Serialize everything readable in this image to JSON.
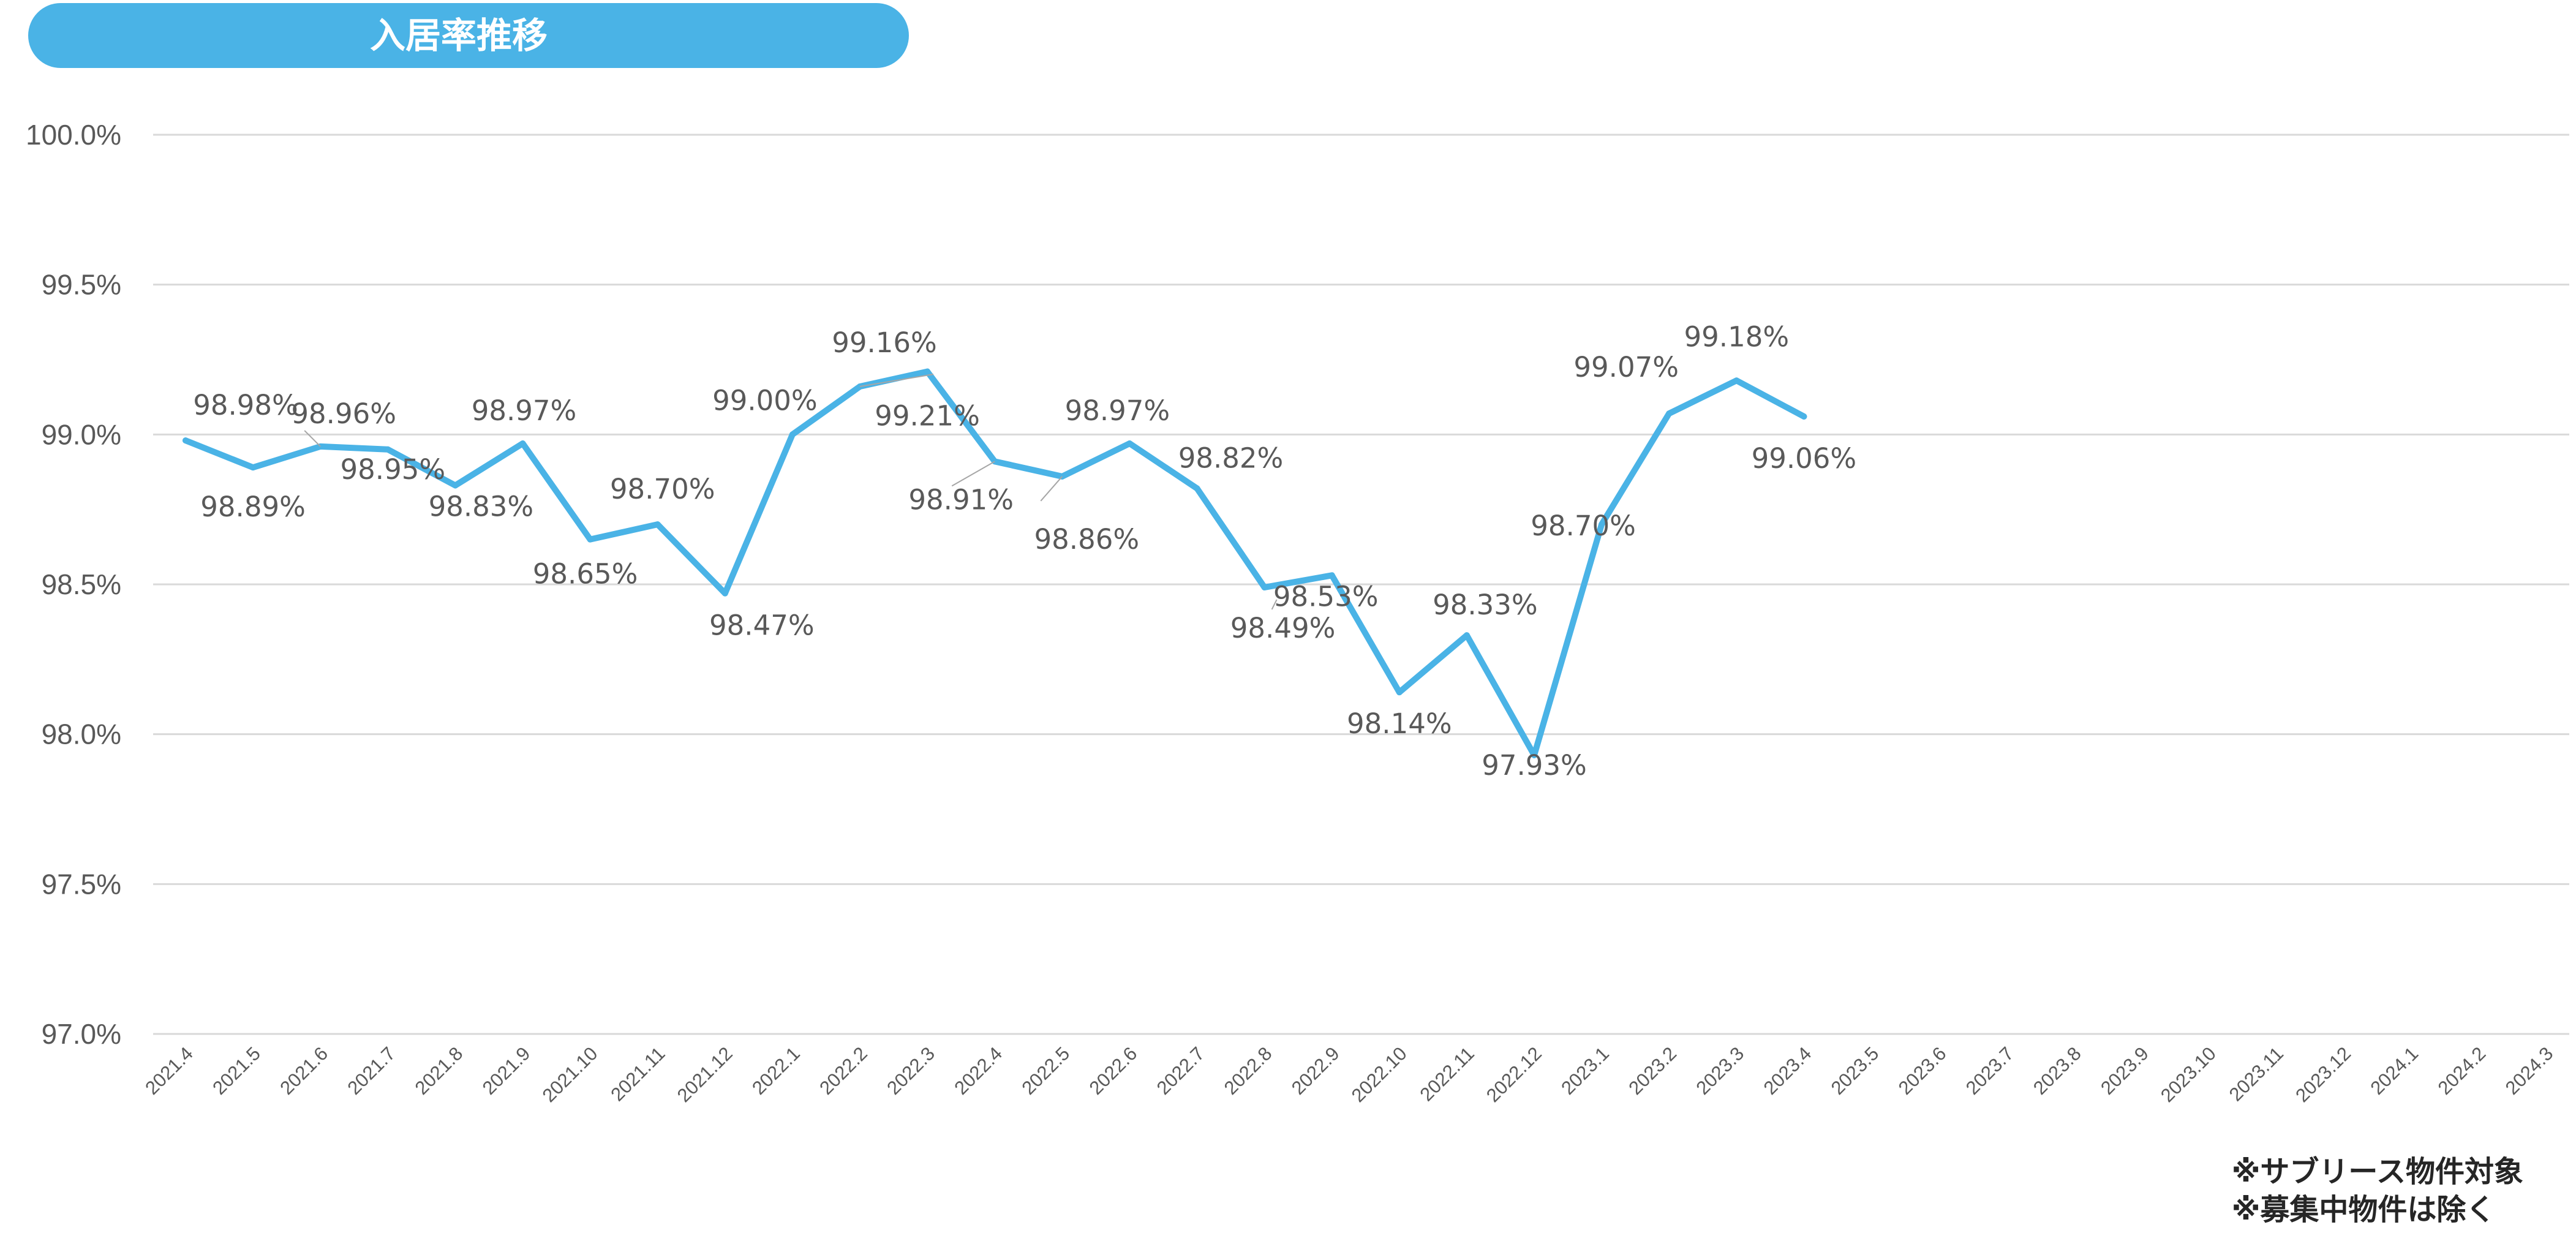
{
  "header": {
    "title": "入居率推移"
  },
  "notes": [
    "※サブリース物件対象",
    "※募集中物件は除く"
  ],
  "colors": {
    "line": "#4ab3e6",
    "grid": "#d9d9d9",
    "text": "#595959",
    "title_bg": "#4ab3e6"
  },
  "chart_data": {
    "type": "line",
    "title": "入居率推移",
    "categories": [
      "2021.4",
      "2021.5",
      "2021.6",
      "2021.7",
      "2021.8",
      "2021.9",
      "2021.10",
      "2021.11",
      "2021.12",
      "2022.1",
      "2022.2",
      "2022.3",
      "2022.4",
      "2022.5",
      "2022.6",
      "2022.7",
      "2022.8",
      "2022.9",
      "2022.10",
      "2022.11",
      "2022.12",
      "2023.1",
      "2023.2",
      "2023.3",
      "2023.4",
      "2023.5",
      "2023.6",
      "2023.7",
      "2023.8",
      "2023.9",
      "2023.10",
      "2023.11",
      "2023.12",
      "2024.1",
      "2024.2",
      "2024.3"
    ],
    "series": [
      {
        "values": [
          98.98,
          98.89,
          98.96,
          98.95,
          98.83,
          98.97,
          98.65,
          98.7,
          98.47,
          99.0,
          99.16,
          99.21,
          98.91,
          98.86,
          98.97,
          98.82,
          98.49,
          98.53,
          98.14,
          98.33,
          97.93,
          98.7,
          99.07,
          99.18,
          99.06,
          null,
          null,
          null,
          null,
          null,
          null,
          null,
          null,
          null,
          null,
          null
        ]
      }
    ],
    "data_labels": [
      "98.98%",
      "98.89%",
      "98.96%",
      "98.95%",
      "98.83%",
      "98.97%",
      "98.65%",
      "98.70%",
      "98.47%",
      "99.00%",
      "99.16%",
      "99.21%",
      "98.91%",
      "98.86%",
      "98.97%",
      "98.82%",
      "98.49%",
      "98.53%",
      "98.14%",
      "98.33%",
      "97.93%",
      "98.70%",
      "99.07%",
      "99.18%",
      "99.06%"
    ],
    "y_ticks": [
      "97.0%",
      "97.5%",
      "98.0%",
      "98.5%",
      "99.0%",
      "99.5%",
      "100.0%"
    ],
    "ylim": [
      97.0,
      100.0
    ],
    "grid": true,
    "legend": "none"
  }
}
